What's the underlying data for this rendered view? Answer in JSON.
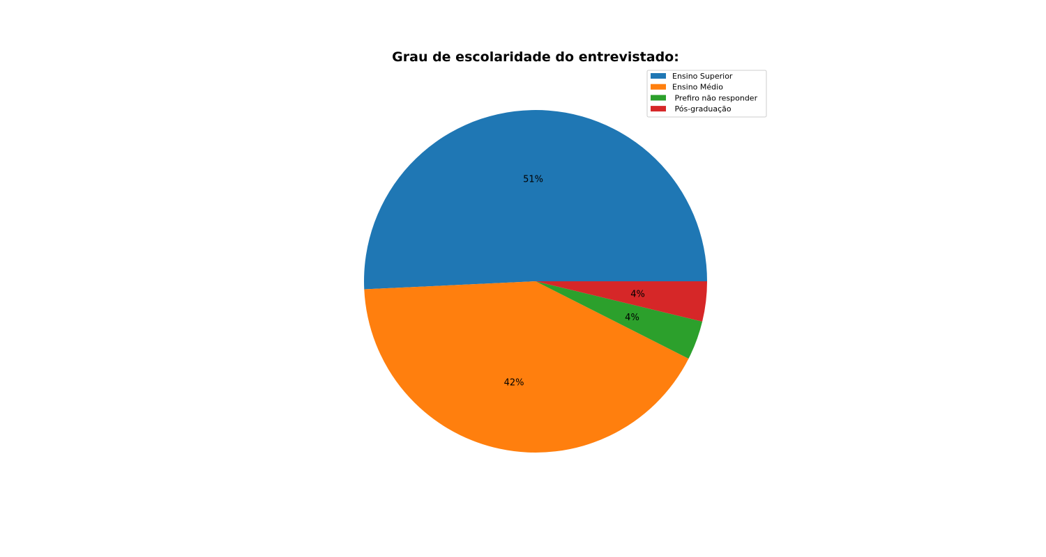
{
  "chart_data": {
    "type": "pie",
    "title": "Grau de escolaridade do entrevistado:",
    "legend_position": "upper-right",
    "start_angle_deg": 0,
    "direction": "counterclockwise",
    "slices": [
      {
        "label": "Ensino Superior",
        "value": 51,
        "pct_label": "51%",
        "color": "#1f77b4"
      },
      {
        "label": "Ensino Médio",
        "value": 42,
        "pct_label": "42%",
        "color": "#ff7f0e"
      },
      {
        "label": " Prefiro não responder",
        "value": 3.7,
        "pct_label": "4%",
        "color": "#2ca02c"
      },
      {
        "label": " Pós-graduação",
        "value": 3.8,
        "pct_label": "4%",
        "color": "#d62728"
      }
    ]
  }
}
